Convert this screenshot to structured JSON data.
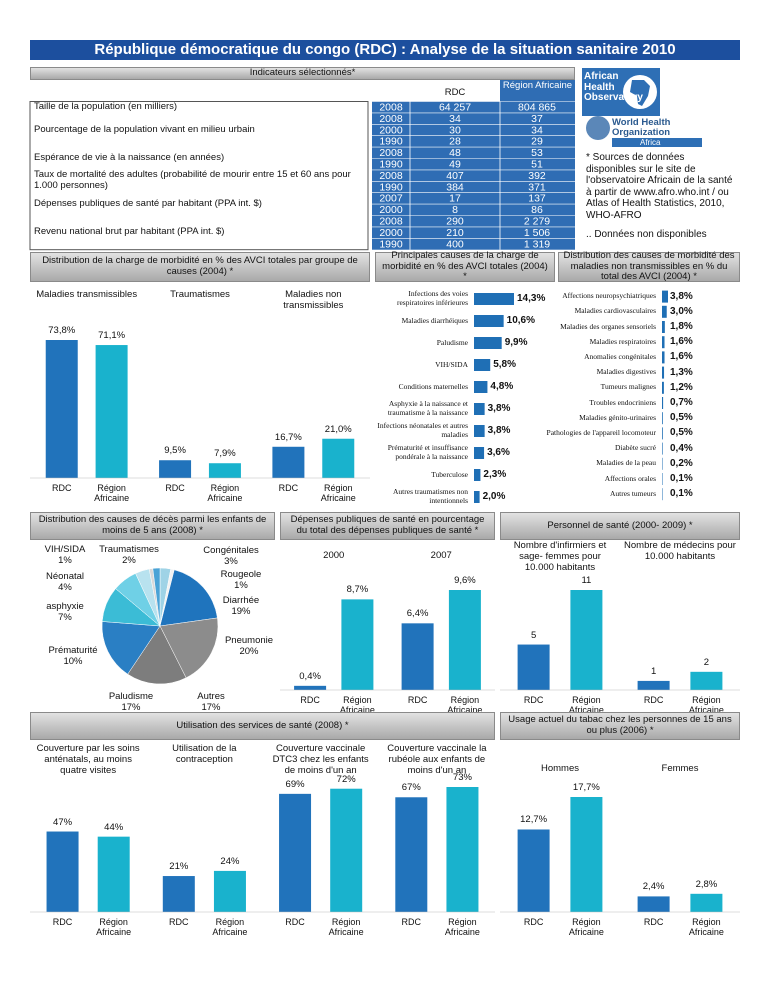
{
  "title": "République démocratique du congo (RDC) : Analyse de la situation sanitaire 2010",
  "indicators": {
    "heading": "Indicateurs sélectionnés*",
    "columns": [
      "RDC",
      "Région Africaine"
    ],
    "rows": [
      {
        "label": "Taille de la population  (en milliers)",
        "entries": [
          [
            "2008",
            "64 257",
            "804 865"
          ]
        ]
      },
      {
        "label": "Pourcentage de la population vivant en milieu urbain",
        "entries": [
          [
            "2008",
            "34",
            "37"
          ],
          [
            "2000",
            "30",
            "34"
          ],
          [
            "1990",
            "28",
            "29"
          ]
        ]
      },
      {
        "label": "Espérance de vie à la naissance (en années)",
        "entries": [
          [
            "2008",
            "48",
            "53"
          ],
          [
            "1990",
            "49",
            "51"
          ]
        ]
      },
      {
        "label": "Taux de mortalité des adultes  (probabilité de mourir entre 15 et 60 ans pour 1.000 personnes)",
        "entries": [
          [
            "2008",
            "407",
            "392"
          ],
          [
            "1990",
            "384",
            "371"
          ]
        ]
      },
      {
        "label": "Dépenses publiques de santé par habitant (PPA int. $)",
        "entries": [
          [
            "2007",
            "17",
            "137"
          ],
          [
            "2000",
            "8",
            "86"
          ]
        ]
      },
      {
        "label": "Revenu national brut par habitant (PPA int. $)",
        "entries": [
          [
            "2008",
            "290",
            "2 279"
          ],
          [
            "2000",
            "210",
            "1 506"
          ],
          [
            "1990",
            "400",
            "1 319"
          ]
        ]
      }
    ]
  },
  "notes": {
    "aho": "African Health Observatory",
    "who": "World Health Organization",
    "who_region": "Africa",
    "sources": "* Sources de données disponibles sur le site de l'observatoire Africain de la santé à partir de www.afro.who.int / ou  Atlas of Health Statistics, 2010, WHO-AFRO",
    "missing": ".. Données non disponibles"
  },
  "chart_data": [
    {
      "type": "grouped_bar",
      "title": "Distribution de la charge de morbidité en % des AVCI totales par groupe de causes (2004) *",
      "colors": [
        "#2173bb",
        "#19b2cd"
      ],
      "groups": [
        {
          "name": "Maladies transmissibles",
          "categories": [
            "RDC",
            "Région Africaine"
          ],
          "values": [
            73.8,
            71.1
          ],
          "value_labels": [
            "73,8%",
            "71,1%"
          ]
        },
        {
          "name": "Traumatismes",
          "categories": [
            "RDC",
            "Région Africaine"
          ],
          "values": [
            9.5,
            7.9
          ],
          "value_labels": [
            "9,5%",
            "7,9%"
          ]
        },
        {
          "name": "Maladies non transmissibles",
          "categories": [
            "RDC",
            "Région Africaine"
          ],
          "values": [
            16.7,
            21.0
          ],
          "value_labels": [
            "16,7%",
            "21,0%"
          ]
        }
      ]
    },
    {
      "type": "hbar",
      "title": "Principales causes de la charge de morbidité en % des AVCI totales (2004) *",
      "color": "#1f6fb5",
      "categories": [
        "Infections des voies respiratoires inférieures",
        "Maladies diarrhéiques",
        "Paludisme",
        "VIH/SIDA",
        "Conditions maternelles",
        "Asphyxie à la naissance et traumatisme à la naissance",
        "Infections néonatales et autres maladies",
        "Prématurité et insuffisance pondérale à la naissance",
        "Tuberculose",
        "Autres traumatismes non intentionnels"
      ],
      "values": [
        14.3,
        10.6,
        9.9,
        5.8,
        4.8,
        3.8,
        3.8,
        3.6,
        2.3,
        2.0
      ],
      "value_labels": [
        "14,3%",
        "10,6%",
        "9,9%",
        "5,8%",
        "4,8%",
        "3,8%",
        "3,8%",
        "3,6%",
        "2,3%",
        "2,0%"
      ]
    },
    {
      "type": "hbar",
      "title": "Distribution des causes de morbidité des maladies non transmissibles en % du total des AVCI (2004) *",
      "color": "#1f6fb5",
      "categories": [
        "Affections neuropsychiatriques",
        "Maladies cardiovasculaires",
        "Maladies des organes sensoriels",
        "Maladies respiratoires",
        "Anomalies congénitales",
        "Maladies digestives",
        "Tumeurs malignes",
        "Troubles endocriniens",
        "Maladies génito-urinaires",
        "Pathologies de l'appareil locomoteur",
        "Diabète sucré",
        "Maladies de la peau",
        "Affections orales",
        "Autres tumeurs"
      ],
      "values": [
        3.8,
        3.0,
        1.8,
        1.6,
        1.6,
        1.3,
        1.2,
        0.7,
        0.5,
        0.5,
        0.4,
        0.2,
        0.1,
        0.1
      ],
      "value_labels": [
        "3,8%",
        "3,0%",
        "1,8%",
        "1,6%",
        "1,6%",
        "1,3%",
        "1,2%",
        "0,7%",
        "0,5%",
        "0,5%",
        "0,4%",
        "0,2%",
        "0,1%",
        "0,1%"
      ]
    },
    {
      "type": "pie",
      "title": "Distribution des causes de décès parmi les enfants de moins de 5 ans (2008) *",
      "categories": [
        "Congénitales",
        "Rougeole",
        "Diarrhée",
        "Pneumonie",
        "Autres",
        "Paludisme",
        "Prématurité",
        "asphyxie",
        "Néonatal",
        "VIH/SIDA",
        "Traumatismes"
      ],
      "values": [
        3,
        1,
        19,
        20,
        17,
        17,
        10,
        7,
        4,
        1,
        2
      ],
      "value_labels": [
        "3%",
        "1%",
        "19%",
        "20%",
        "17%",
        "17%",
        "10%",
        "7%",
        "4%",
        "1%",
        "2%"
      ],
      "colors": [
        "#9fd3e6",
        "#f2f2f2",
        "#1f74bd",
        "#8c8c8c",
        "#7d7d7d",
        "#2a7fc4",
        "#3bbcd6",
        "#6fd0e6",
        "#b8e2ef",
        "#d9d9d9",
        "#4aa3d6"
      ]
    },
    {
      "type": "grouped_bar",
      "title": "Dépenses publiques de santé en pourcentage du total des dépenses publiques de santé *",
      "colors": [
        "#2173bb",
        "#19b2cd"
      ],
      "groups": [
        {
          "name": "2000",
          "categories": [
            "RDC",
            "Région Africaine"
          ],
          "values": [
            0.4,
            8.7
          ],
          "value_labels": [
            "0,4%",
            "8,7%"
          ]
        },
        {
          "name": "2007",
          "categories": [
            "RDC",
            "Région Africaine"
          ],
          "values": [
            6.4,
            9.6
          ],
          "value_labels": [
            "6,4%",
            "9,6%"
          ]
        }
      ]
    },
    {
      "type": "grouped_bar",
      "title": "Personnel de santé (2000- 2009) *",
      "colors": [
        "#2173bb",
        "#19b2cd"
      ],
      "groups": [
        {
          "name": "Nombre d'infirmiers et sage- femmes pour 10.000 habitants",
          "categories": [
            "RDC",
            "Région Africaine"
          ],
          "values": [
            5,
            11
          ]
        },
        {
          "name": "Nombre de médecins pour 10.000 habitants",
          "categories": [
            "RDC",
            "Région Africaine"
          ],
          "values": [
            1,
            2
          ]
        }
      ]
    },
    {
      "type": "grouped_bar",
      "title": "Utilisation des services de santé (2008) *",
      "colors": [
        "#2173bb",
        "#19b2cd"
      ],
      "groups": [
        {
          "name": "Couverture par les soins anténatals, au moins quatre visites",
          "categories": [
            "RDC",
            "Région Africaine"
          ],
          "values": [
            47,
            44
          ],
          "value_labels": [
            "47%",
            "44%"
          ]
        },
        {
          "name": "Utilisation de la contraception",
          "categories": [
            "RDC",
            "Région Africaine"
          ],
          "values": [
            21,
            24
          ],
          "value_labels": [
            "21%",
            "24%"
          ]
        },
        {
          "name": "Couverture vaccinale DTC3 chez les enfants de moins d'un an",
          "categories": [
            "RDC",
            "Région Africaine"
          ],
          "values": [
            69,
            72
          ],
          "value_labels": [
            "69%",
            "72%"
          ]
        },
        {
          "name": "Couverture vaccinale la rubéole aux enfants de moins d'un an",
          "categories": [
            "RDC",
            "Région Africaine"
          ],
          "values": [
            67,
            73
          ],
          "value_labels": [
            "67%",
            "73%"
          ]
        }
      ]
    },
    {
      "type": "grouped_bar",
      "title": "Usage actuel du tabac chez les personnes de 15 ans ou plus (2006) *",
      "colors": [
        "#2173bb",
        "#19b2cd"
      ],
      "groups": [
        {
          "name": "Hommes",
          "categories": [
            "RDC",
            "Région Africaine"
          ],
          "values": [
            12.7,
            17.7
          ],
          "value_labels": [
            "12,7%",
            "17,7%"
          ]
        },
        {
          "name": "Femmes",
          "categories": [
            "RDC",
            "Région Africaine"
          ],
          "values": [
            2.4,
            2.8
          ],
          "value_labels": [
            "2,4%",
            "2,8%"
          ]
        }
      ]
    }
  ]
}
